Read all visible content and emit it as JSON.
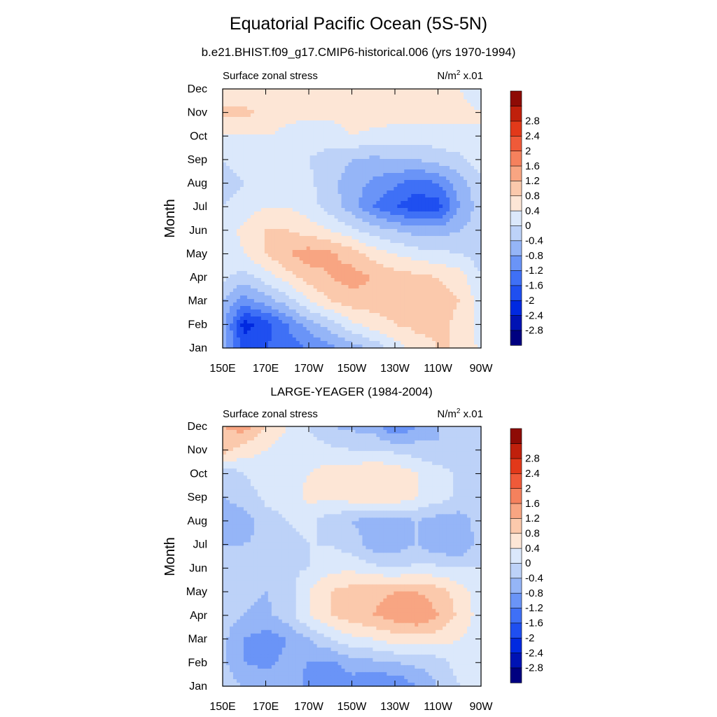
{
  "title": "Equatorial Pacific Ocean (5S-5N)",
  "case_title": "b.e21.BHIST.f09_g17.CMIP6-historical.006 (yrs 1970-1994)",
  "colorbar": {
    "colors": [
      "#000080",
      "#0013b3",
      "#0029e0",
      "#1f4ff0",
      "#3f70f6",
      "#6a94f7",
      "#95b5f7",
      "#bdd2f8",
      "#dbe8fb",
      "#fde6d6",
      "#fbc9ac",
      "#f8a582",
      "#f5815d",
      "#ef5a39",
      "#e2391a",
      "#c0200c",
      "#8e0b05"
    ],
    "labels": [
      "-2.8",
      "-2.4",
      "-2",
      "-1.6",
      "-1.2",
      "-0.8",
      "-0.4",
      "0",
      "0.4",
      "0.8",
      "1.2",
      "1.6",
      "2",
      "2.4",
      "2.8"
    ]
  },
  "chart_data": [
    {
      "type": "heatmap",
      "title": "",
      "left_label": "Surface zonal stress",
      "unit_label": {
        "base": "N/m",
        "sup": "2",
        "suffix": " x.01"
      },
      "ylabel": "Month",
      "xticks": [
        "150E",
        "170E",
        "170W",
        "150W",
        "130W",
        "110W",
        "90W"
      ],
      "yticks": [
        "Jan",
        "Feb",
        "Mar",
        "Apr",
        "May",
        "Jun",
        "Jul",
        "Aug",
        "Sep",
        "Oct",
        "Nov",
        "Dec"
      ],
      "xlim": [
        "150E",
        "90W"
      ],
      "x_lon": [
        150,
        160,
        170,
        180,
        190,
        200,
        210,
        220,
        230,
        240,
        250,
        260,
        270
      ],
      "months": [
        1,
        2,
        3,
        4,
        5,
        6,
        7,
        8,
        9,
        10,
        11,
        12
      ],
      "z": [
        [
          -0.5,
          -1.8,
          -1.6,
          -1.4,
          -1.2,
          -0.9,
          -0.6,
          -0.3,
          0.2,
          0.6,
          0.8,
          0.8,
          0.3
        ],
        [
          -0.6,
          -2.2,
          -1.8,
          -1.2,
          -0.6,
          -0.2,
          0.3,
          0.6,
          0.8,
          0.9,
          0.9,
          0.7,
          0.2
        ],
        [
          -0.4,
          -1.0,
          -0.6,
          -0.2,
          0.4,
          0.8,
          1.0,
          1.0,
          1.0,
          1.0,
          1.0,
          0.8,
          0.2
        ],
        [
          0.1,
          -0.2,
          0.2,
          0.6,
          1.0,
          1.2,
          1.4,
          1.2,
          1.0,
          0.9,
          0.8,
          0.6,
          0.0
        ],
        [
          0.2,
          0.4,
          0.8,
          1.2,
          1.4,
          1.3,
          1.0,
          0.6,
          0.4,
          0.2,
          0.1,
          0.0,
          -0.2
        ],
        [
          0.2,
          0.5,
          0.8,
          0.8,
          0.6,
          0.4,
          0.1,
          -0.2,
          -0.4,
          -0.6,
          -0.6,
          -0.4,
          -0.2
        ],
        [
          0.0,
          0.2,
          0.4,
          0.4,
          0.2,
          -0.2,
          -0.6,
          -1.2,
          -1.6,
          -1.9,
          -1.8,
          -0.8,
          -0.2
        ],
        [
          -0.2,
          0.0,
          0.2,
          0.2,
          0.1,
          -0.3,
          -0.6,
          -0.9,
          -1.1,
          -1.4,
          -1.2,
          -0.6,
          -0.1
        ],
        [
          0.0,
          0.2,
          0.2,
          0.1,
          0.0,
          -0.2,
          -0.4,
          -0.5,
          -0.4,
          -0.4,
          -0.2,
          -0.1,
          0.2
        ],
        [
          0.4,
          0.4,
          0.4,
          0.3,
          0.2,
          0.2,
          0.4,
          0.3,
          0.2,
          0.2,
          0.2,
          0.3,
          0.4
        ],
        [
          0.9,
          0.9,
          0.7,
          0.5,
          0.5,
          0.5,
          0.6,
          0.6,
          0.6,
          0.6,
          0.6,
          0.5,
          0.4
        ],
        [
          0.4,
          0.5,
          0.4,
          0.4,
          0.4,
          0.5,
          0.6,
          0.6,
          0.5,
          0.4,
          0.5,
          0.4,
          0.2
        ]
      ]
    },
    {
      "type": "heatmap",
      "title": "LARGE-YEAGER (1984-2004)",
      "left_label": "Surface zonal stress",
      "unit_label": {
        "base": "N/m",
        "sup": "2",
        "suffix": " x.01"
      },
      "ylabel": "Month",
      "xticks": [
        "150E",
        "170E",
        "170W",
        "150W",
        "130W",
        "110W",
        "90W"
      ],
      "yticks": [
        "Jan",
        "Feb",
        "Mar",
        "Apr",
        "May",
        "Jun",
        "Jul",
        "Aug",
        "Sep",
        "Oct",
        "Nov",
        "Dec"
      ],
      "xlim": [
        "150E",
        "90W"
      ],
      "x_lon": [
        150,
        160,
        170,
        180,
        190,
        200,
        210,
        220,
        230,
        240,
        250,
        260,
        270
      ],
      "months": [
        1,
        2,
        3,
        4,
        5,
        6,
        7,
        8,
        9,
        10,
        11,
        12
      ],
      "z": [
        [
          -0.2,
          -0.4,
          -0.6,
          -0.6,
          -0.9,
          -1.2,
          -1.0,
          -1.2,
          -1.2,
          -0.8,
          -0.4,
          0.0,
          0.2
        ],
        [
          -0.3,
          -0.8,
          -0.9,
          -0.7,
          -0.8,
          -0.9,
          -0.6,
          -0.5,
          -0.4,
          -0.3,
          -0.2,
          0.2,
          0.2
        ],
        [
          -0.3,
          -0.8,
          -1.0,
          -0.8,
          -0.4,
          0.0,
          0.3,
          0.4,
          0.6,
          0.6,
          0.6,
          0.4,
          0.2
        ],
        [
          -0.2,
          -0.4,
          -0.5,
          -0.2,
          0.4,
          0.8,
          1.0,
          1.2,
          1.4,
          1.6,
          1.2,
          0.7,
          0.2
        ],
        [
          -0.1,
          -0.3,
          -0.4,
          -0.2,
          0.4,
          0.8,
          1.0,
          1.1,
          1.2,
          1.2,
          1.0,
          0.6,
          0.2
        ],
        [
          -0.2,
          -0.2,
          -0.3,
          -0.1,
          0.0,
          0.3,
          0.3,
          0.1,
          0.0,
          0.1,
          0.1,
          0.0,
          0.0
        ],
        [
          -0.4,
          -0.4,
          -0.3,
          -0.1,
          0.0,
          0.0,
          -0.2,
          -0.6,
          -0.6,
          -0.4,
          -0.7,
          -0.8,
          -0.2
        ],
        [
          -0.8,
          -0.6,
          -0.2,
          0.0,
          0.1,
          -0.2,
          -0.4,
          -0.6,
          -0.6,
          -0.4,
          -0.6,
          -0.6,
          -0.2
        ],
        [
          -0.4,
          -0.2,
          0.1,
          0.2,
          0.5,
          0.5,
          0.6,
          0.8,
          0.7,
          0.4,
          0.2,
          -0.1,
          -0.2
        ],
        [
          -0.3,
          0.0,
          0.2,
          0.3,
          0.4,
          0.6,
          0.6,
          0.8,
          0.7,
          0.4,
          0.2,
          -0.1,
          -0.2
        ],
        [
          1.0,
          0.6,
          0.4,
          0.2,
          0.2,
          0.1,
          0.0,
          0.0,
          -0.1,
          -0.2,
          -0.4,
          -0.2,
          0.0
        ],
        [
          1.2,
          1.4,
          0.8,
          0.4,
          0.0,
          -0.4,
          -0.5,
          -0.6,
          -1.2,
          -0.8,
          -0.4,
          -0.2,
          0.0
        ]
      ]
    }
  ]
}
